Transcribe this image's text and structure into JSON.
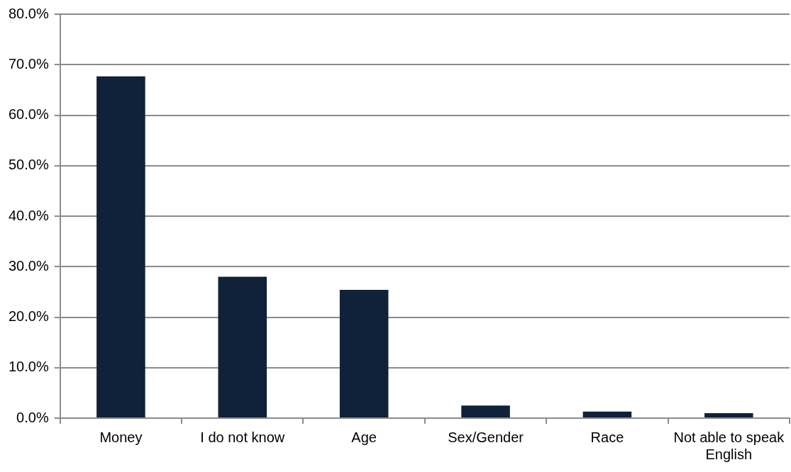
{
  "chart_data": {
    "type": "bar",
    "categories": [
      "Money",
      "I do not know",
      "Age",
      "Sex/Gender",
      "Race",
      "Not able to speak English"
    ],
    "values": [
      67.7,
      28.0,
      25.4,
      2.5,
      1.3,
      1.0
    ],
    "color": "#10213a",
    "ylim": [
      0,
      80
    ],
    "yticks": [
      {
        "value": 0,
        "label": "0.0%"
      },
      {
        "value": 10,
        "label": "10.0%"
      },
      {
        "value": 20,
        "label": "20.0%"
      },
      {
        "value": 30,
        "label": "30.0%"
      },
      {
        "value": 40,
        "label": "40.0%"
      },
      {
        "value": 50,
        "label": "50.0%"
      },
      {
        "value": 60,
        "label": "60.0%"
      },
      {
        "value": 70,
        "label": "70.0%"
      },
      {
        "value": 80,
        "label": "80.0%"
      }
    ],
    "grid": "y"
  }
}
